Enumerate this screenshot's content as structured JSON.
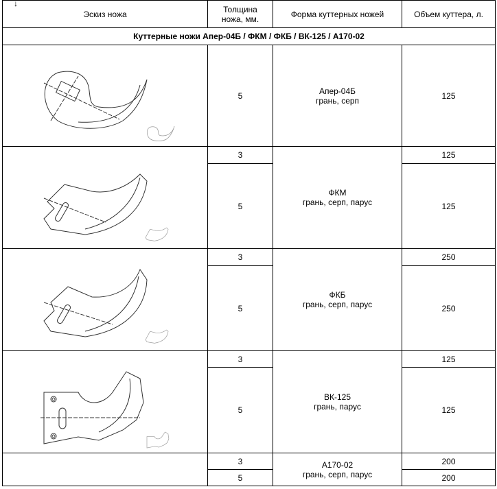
{
  "header": {
    "col_sketch": "Эскиз ножа",
    "col_thickness_1": "Толщина",
    "col_thickness_2": "ножа, мм.",
    "col_form": "Форма куттерных ножей",
    "col_volume": "Объем куттера, л."
  },
  "section_title": "Куттерные ножи Апер-04Б / ФКМ / ФКБ / ВК-125 / А170-02",
  "rows": [
    {
      "name": "Апер-04Б",
      "form": "грань, серп",
      "sub": [
        {
          "thickness": "5",
          "volume": "125"
        }
      ]
    },
    {
      "name": "ФКМ",
      "form": "грань, серп, парус",
      "sub": [
        {
          "thickness": "3",
          "volume": "125"
        },
        {
          "thickness": "5",
          "volume": "125"
        }
      ]
    },
    {
      "name": "ФКБ",
      "form": "грань, серп, парус",
      "sub": [
        {
          "thickness": "3",
          "volume": "250"
        },
        {
          "thickness": "5",
          "volume": "250"
        }
      ]
    },
    {
      "name": "ВК-125",
      "form": "грань, парус",
      "sub": [
        {
          "thickness": "3",
          "volume": "125"
        },
        {
          "thickness": "5",
          "volume": "125"
        }
      ]
    },
    {
      "name": "А170-02",
      "form": "грань, серп, парус",
      "sub": [
        {
          "thickness": "3",
          "volume": "200"
        },
        {
          "thickness": "5",
          "volume": "200"
        }
      ]
    }
  ],
  "icons": {
    "arrow": "down-arrow-icon"
  }
}
